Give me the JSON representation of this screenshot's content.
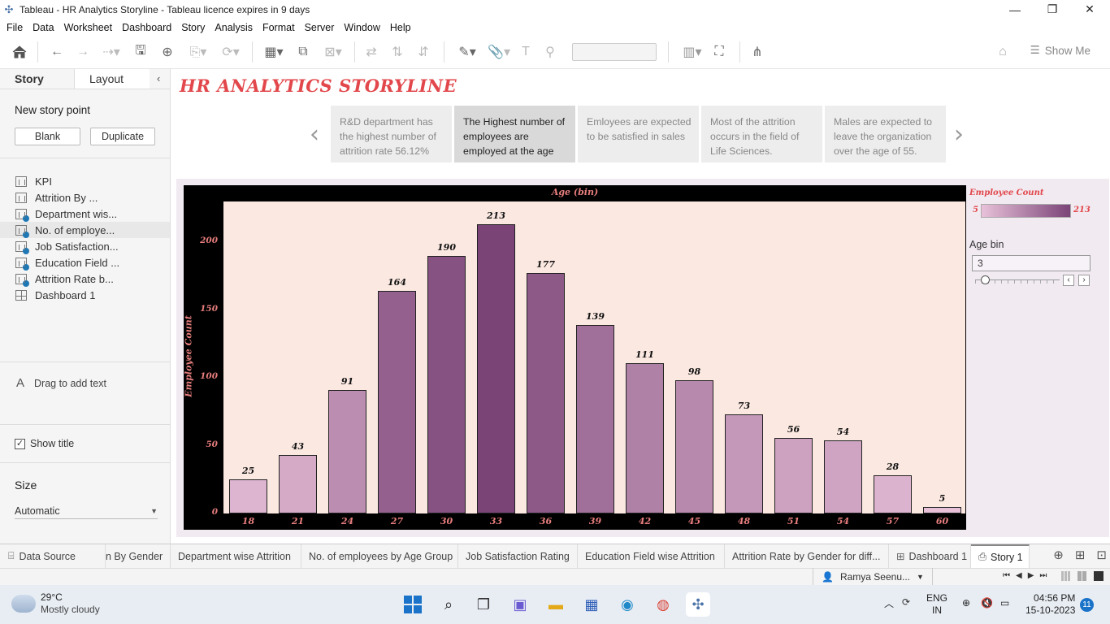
{
  "window": {
    "title": "Tableau - HR Analytics Storyline - Tableau licence expires in 9 days"
  },
  "menu": [
    "File",
    "Data",
    "Worksheet",
    "Dashboard",
    "Story",
    "Analysis",
    "Format",
    "Server",
    "Window",
    "Help"
  ],
  "toolbar": {
    "show_me_label": "Show Me"
  },
  "left_panel": {
    "tabs": [
      "Story",
      "Layout"
    ],
    "new_story_point_label": "New story point",
    "blank_button": "Blank",
    "duplicate_button": "Duplicate",
    "sheets": [
      {
        "label": "KPI",
        "type": "sheet",
        "badge": false
      },
      {
        "label": "Attrition By ...",
        "type": "sheet",
        "badge": false
      },
      {
        "label": "Department wis...",
        "type": "sheet",
        "badge": true
      },
      {
        "label": "No. of employe...",
        "type": "sheet",
        "badge": true
      },
      {
        "label": "Job Satisfaction...",
        "type": "sheet",
        "badge": true
      },
      {
        "label": "Education Field ...",
        "type": "sheet",
        "badge": true
      },
      {
        "label": "Attrition Rate b...",
        "type": "sheet",
        "badge": true
      },
      {
        "label": "Dashboard 1",
        "type": "dashboard",
        "badge": false
      }
    ],
    "drag_text_label": "Drag to add text",
    "show_title_label": "Show title",
    "show_title_checked": true,
    "size_label": "Size",
    "size_value": "Automatic"
  },
  "story": {
    "title": "HR ANALYTICS STORYLINE",
    "captions": [
      {
        "text": "R&D department has the highest  number of attrition rate 56.12%",
        "active": false
      },
      {
        "text": "The Highest number of employees are employed at the age",
        "active": true
      },
      {
        "text": "Emloyees are expected to be satisfied in sales",
        "active": false
      },
      {
        "text": "Most of the attrition occurs in the field of Life Sciences.",
        "active": false
      },
      {
        "text": "Males are expected to leave the organization over the age of 55.",
        "active": false
      }
    ]
  },
  "chart_data": {
    "type": "bar",
    "title": "Age (bin)",
    "xlabel": "Age (bin)",
    "ylabel": "Employee Count",
    "categories": [
      "18",
      "21",
      "24",
      "27",
      "30",
      "33",
      "36",
      "39",
      "42",
      "45",
      "48",
      "51",
      "54",
      "57",
      "60"
    ],
    "values": [
      25,
      43,
      91,
      164,
      190,
      213,
      177,
      139,
      111,
      98,
      73,
      56,
      54,
      28,
      5
    ],
    "ylim": [
      0,
      230
    ],
    "yticks": [
      0,
      50,
      100,
      150,
      200
    ],
    "data_labels": true,
    "color_ramp": [
      "#e8c1d9",
      "#7a4477"
    ],
    "legend": {
      "title": "Employee Count",
      "min": "5",
      "max": "213",
      "position": "right"
    }
  },
  "filter": {
    "label": "Age bin",
    "value": "3"
  },
  "sheet_tabs": [
    {
      "label": "Data Source",
      "active": false
    },
    {
      "label": "n By Gender",
      "active": false
    },
    {
      "label": "Department wise Attrition",
      "active": false
    },
    {
      "label": "No. of employees by Age Group",
      "active": false
    },
    {
      "label": "Job Satisfaction Rating",
      "active": false
    },
    {
      "label": "Education Field wise Attrition",
      "active": false
    },
    {
      "label": "Attrition Rate by Gender for diff...",
      "active": false
    },
    {
      "label": "Dashboard 1",
      "active": false
    },
    {
      "label": "Story 1",
      "active": true
    }
  ],
  "status": {
    "user": "Ramya Seenu..."
  },
  "taskbar": {
    "weather_temp": "29°C",
    "weather_desc": "Mostly cloudy",
    "lang_top": "ENG",
    "lang_bottom": "IN",
    "time": "04:56 PM",
    "date": "15-10-2023",
    "notifications": "11"
  }
}
